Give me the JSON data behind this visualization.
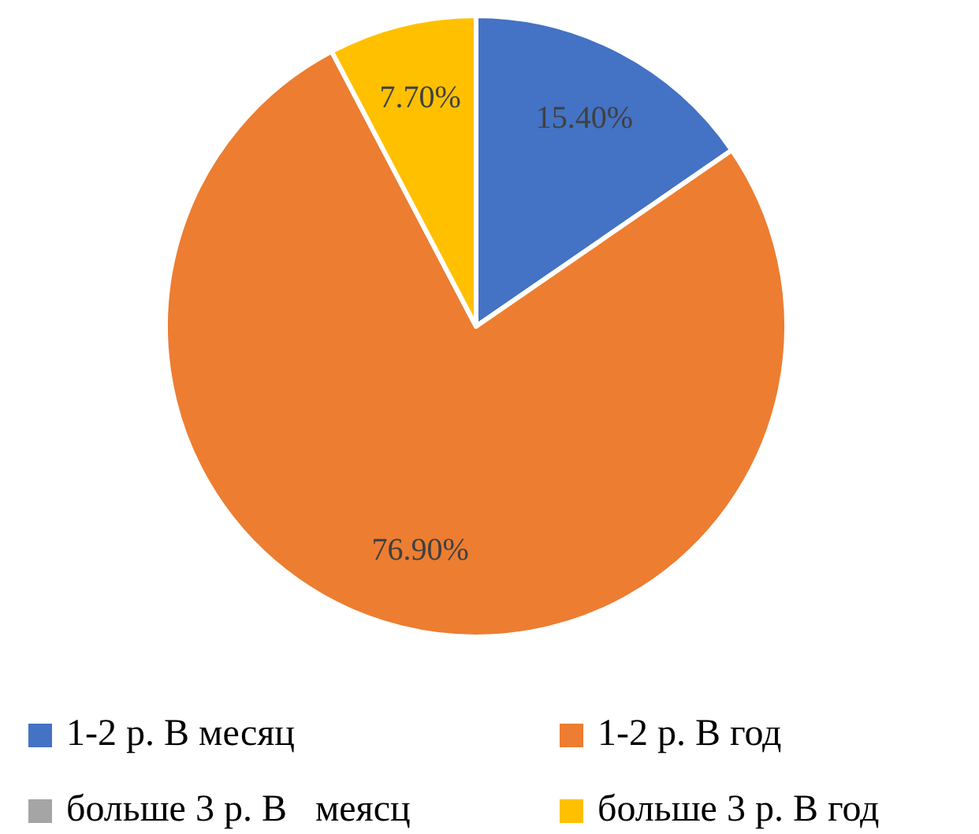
{
  "chart_data": {
    "type": "pie",
    "categories": [
      "1-2 р. В месяц",
      "1-2 р. В год",
      "больше 3 р. В   меясц",
      "больше 3 р. В год"
    ],
    "values": [
      15.4,
      76.9,
      0,
      7.7
    ],
    "colors": [
      "#4472c4",
      "#ed7d31",
      "#a5a5a5",
      "#ffc000"
    ],
    "value_labels": [
      "15.40%",
      "76.90%",
      null,
      "7.70%"
    ],
    "legend": "bottom"
  }
}
